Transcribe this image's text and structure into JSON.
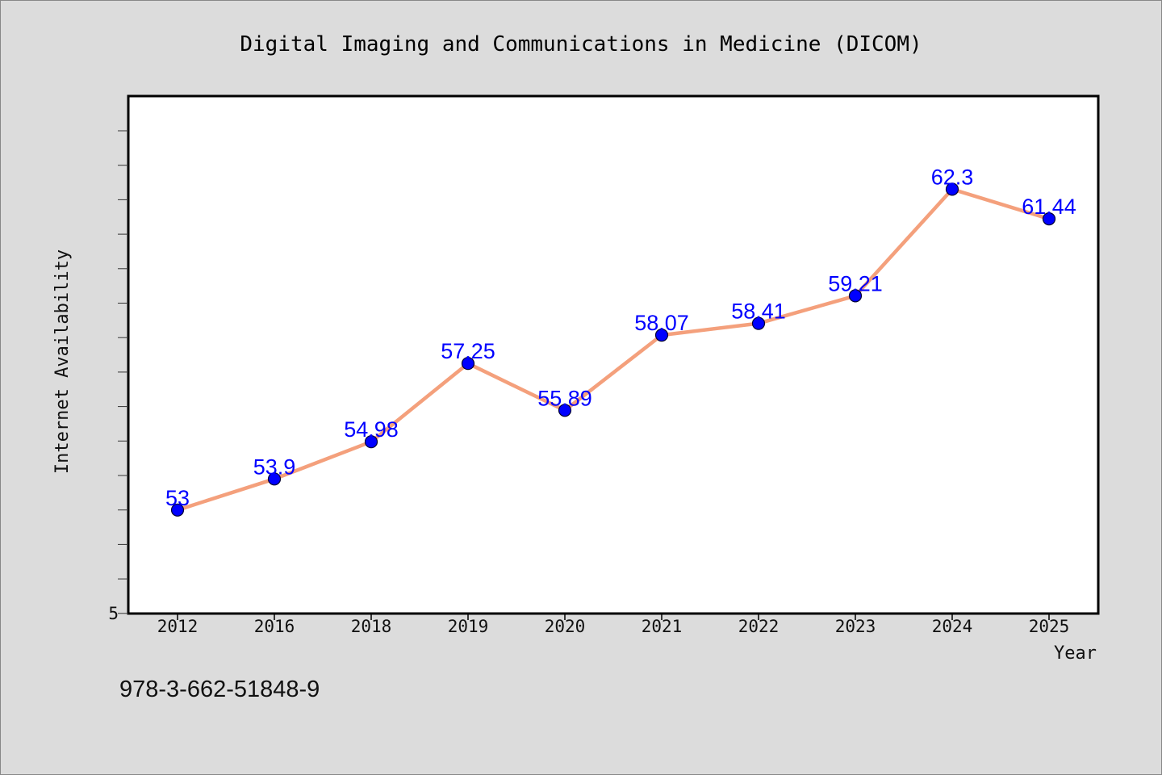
{
  "chart_data": {
    "type": "line",
    "title": "Digital Imaging and Communications in Medicine (DICOM)",
    "xlabel": "Year",
    "ylabel": "Internet Availability",
    "categories": [
      "2012",
      "2016",
      "2018",
      "2019",
      "2020",
      "2021",
      "2022",
      "2023",
      "2024",
      "2025"
    ],
    "series": [
      {
        "values": [
          53,
          53.9,
          54.98,
          57.25,
          55.89,
          58.07,
          58.41,
          59.21,
          62.3,
          61.44
        ],
        "labels": [
          "53",
          "53.9",
          "54.98",
          "57.25",
          "55.89",
          "58.07",
          "58.41",
          "59.21",
          "62.3",
          "61.44"
        ]
      }
    ],
    "ylim": [
      50,
      65
    ],
    "y_tick_labels": [
      "5"
    ],
    "grid": false,
    "legend": "none",
    "colors": {
      "line": "#f4a07c",
      "marker": "#0000ff",
      "data_label": "#0000ff",
      "background": "#dcdcdc",
      "plot_background": "#ffffff"
    }
  },
  "footer": {
    "isbn": "978-3-662-51848-9"
  }
}
